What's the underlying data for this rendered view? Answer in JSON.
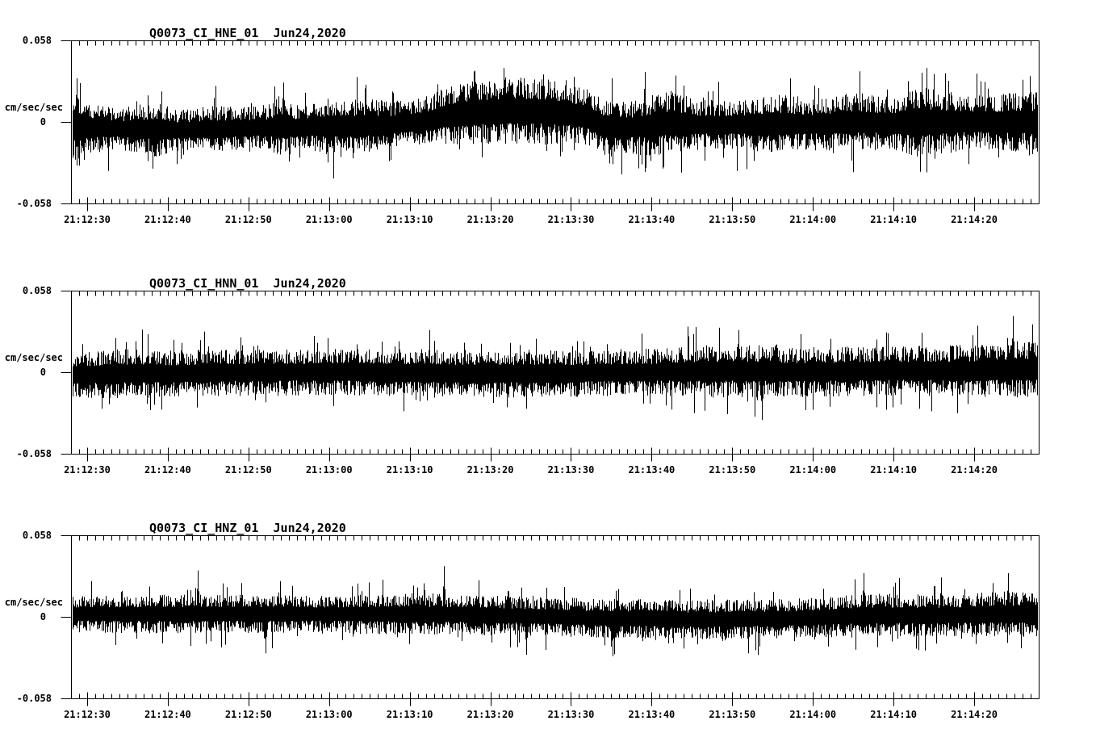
{
  "page": {
    "background": "#ffffff",
    "ink": "#000000"
  },
  "chart_data": [
    {
      "type": "line",
      "kind": "seismogram",
      "title": "Q0073_CI_HNE_01  Jun24,2020",
      "ylabel": "cm/sec/sec",
      "ylim": [
        -0.058,
        0.058
      ],
      "ytick_labels": [
        "0.058",
        "0",
        "-0.058"
      ],
      "ytick_values": [
        0.058,
        0,
        -0.058
      ],
      "x_window_seconds": 120,
      "x_minor_step_s": 1,
      "x_major_step_s": 10,
      "xtick_labels": [
        "21:12:30",
        "21:12:40",
        "21:12:50",
        "21:13:00",
        "21:13:10",
        "21:13:20",
        "21:13:30",
        "21:13:40",
        "21:13:50",
        "21:14:00",
        "21:14:10",
        "21:14:20"
      ],
      "grid": false,
      "legend": "none",
      "seed": 101,
      "envelope": [
        [
          0.0,
          -0.003,
          0.03
        ],
        [
          0.015,
          -0.004,
          0.02
        ],
        [
          0.05,
          -0.005,
          0.016
        ],
        [
          0.09,
          -0.005,
          0.022
        ],
        [
          0.11,
          -0.006,
          0.016
        ],
        [
          0.14,
          -0.005,
          0.018
        ],
        [
          0.2,
          -0.004,
          0.016
        ],
        [
          0.215,
          -0.003,
          0.024
        ],
        [
          0.235,
          -0.004,
          0.016
        ],
        [
          0.265,
          -0.003,
          0.022
        ],
        [
          0.3,
          -0.003,
          0.021
        ],
        [
          0.33,
          -0.002,
          0.018
        ],
        [
          0.36,
          0.0,
          0.018
        ],
        [
          0.4,
          0.006,
          0.024
        ],
        [
          0.45,
          0.008,
          0.026
        ],
        [
          0.5,
          0.007,
          0.025
        ],
        [
          0.53,
          0.004,
          0.022
        ],
        [
          0.55,
          -0.003,
          0.022
        ],
        [
          0.58,
          -0.004,
          0.021
        ],
        [
          0.62,
          -0.001,
          0.025
        ],
        [
          0.65,
          -0.002,
          0.019
        ],
        [
          0.69,
          -0.002,
          0.019
        ],
        [
          0.73,
          -0.001,
          0.023
        ],
        [
          0.77,
          -0.002,
          0.019
        ],
        [
          0.81,
          0.0,
          0.023
        ],
        [
          0.85,
          -0.001,
          0.02
        ],
        [
          0.875,
          0.0,
          0.027
        ],
        [
          0.91,
          0.0,
          0.023
        ],
        [
          0.95,
          0.0,
          0.021
        ],
        [
          1.0,
          0.0,
          0.024
        ]
      ],
      "spikes": [
        [
          0.004,
          0.031
        ],
        [
          0.012,
          -0.027
        ],
        [
          0.108,
          -0.03
        ],
        [
          0.218,
          0.028
        ],
        [
          0.33,
          -0.027
        ],
        [
          0.52,
          0.032
        ],
        [
          0.56,
          -0.03
        ],
        [
          0.625,
          0.033
        ],
        [
          0.88,
          0.035
        ],
        [
          0.985,
          0.03
        ]
      ]
    },
    {
      "type": "line",
      "kind": "seismogram",
      "title": "Q0073_CI_HNN_01  Jun24,2020",
      "ylabel": "cm/sec/sec",
      "ylim": [
        -0.058,
        0.058
      ],
      "ytick_labels": [
        "0.058",
        "0",
        "-0.058"
      ],
      "ytick_values": [
        0.058,
        0,
        -0.058
      ],
      "x_window_seconds": 120,
      "x_minor_step_s": 1,
      "x_major_step_s": 10,
      "xtick_labels": [
        "21:12:30",
        "21:12:40",
        "21:12:50",
        "21:13:00",
        "21:13:10",
        "21:13:20",
        "21:13:30",
        "21:13:40",
        "21:13:50",
        "21:14:00",
        "21:14:10",
        "21:14:20"
      ],
      "grid": false,
      "legend": "none",
      "seed": 202,
      "envelope": [
        [
          0.0,
          -0.002,
          0.017
        ],
        [
          0.05,
          -0.001,
          0.019
        ],
        [
          0.1,
          -0.001,
          0.018
        ],
        [
          0.2,
          0.0,
          0.018
        ],
        [
          0.3,
          0.0,
          0.018
        ],
        [
          0.4,
          -0.001,
          0.019
        ],
        [
          0.5,
          -0.001,
          0.018
        ],
        [
          0.6,
          0.0,
          0.018
        ],
        [
          0.68,
          0.001,
          0.021
        ],
        [
          0.75,
          0.0,
          0.019
        ],
        [
          0.85,
          0.001,
          0.019
        ],
        [
          0.93,
          0.001,
          0.02
        ],
        [
          1.0,
          0.002,
          0.022
        ]
      ],
      "spikes": [
        [
          0.03,
          -0.026
        ],
        [
          0.08,
          -0.027
        ],
        [
          0.45,
          -0.025
        ],
        [
          0.69,
          0.03
        ],
        [
          0.715,
          -0.034
        ],
        [
          0.76,
          -0.027
        ],
        [
          0.88,
          0.028
        ],
        [
          0.975,
          0.04
        ],
        [
          0.995,
          0.034
        ]
      ]
    },
    {
      "type": "line",
      "kind": "seismogram",
      "title": "Q0073_CI_HNZ_01  Jun24,2020",
      "ylabel": "cm/sec/sec",
      "ylim": [
        -0.058,
        0.058
      ],
      "ytick_labels": [
        "0.058",
        "0",
        "-0.058"
      ],
      "ytick_values": [
        0.058,
        0,
        -0.058
      ],
      "x_window_seconds": 120,
      "x_minor_step_s": 1,
      "x_major_step_s": 10,
      "xtick_labels": [
        "21:12:30",
        "21:12:40",
        "21:12:50",
        "21:13:00",
        "21:13:10",
        "21:13:20",
        "21:13:30",
        "21:13:40",
        "21:13:50",
        "21:14:00",
        "21:14:10",
        "21:14:20"
      ],
      "grid": false,
      "legend": "none",
      "seed": 303,
      "envelope": [
        [
          0.0,
          0.002,
          0.014
        ],
        [
          0.1,
          0.002,
          0.015
        ],
        [
          0.15,
          0.002,
          0.015
        ],
        [
          0.25,
          0.002,
          0.014
        ],
        [
          0.35,
          0.002,
          0.016
        ],
        [
          0.45,
          0.001,
          0.015
        ],
        [
          0.55,
          -0.001,
          0.015
        ],
        [
          0.65,
          -0.002,
          0.015
        ],
        [
          0.75,
          -0.001,
          0.015
        ],
        [
          0.82,
          0.001,
          0.017
        ],
        [
          0.9,
          0.001,
          0.016
        ],
        [
          0.97,
          0.002,
          0.018
        ],
        [
          1.0,
          0.002,
          0.018
        ]
      ],
      "spikes": [
        [
          0.13,
          0.033
        ],
        [
          0.2,
          -0.026
        ],
        [
          0.385,
          0.036
        ],
        [
          0.47,
          -0.027
        ],
        [
          0.56,
          -0.028
        ],
        [
          0.7,
          -0.026
        ],
        [
          0.82,
          0.031
        ],
        [
          0.9,
          0.028
        ],
        [
          0.97,
          0.031
        ]
      ]
    }
  ]
}
